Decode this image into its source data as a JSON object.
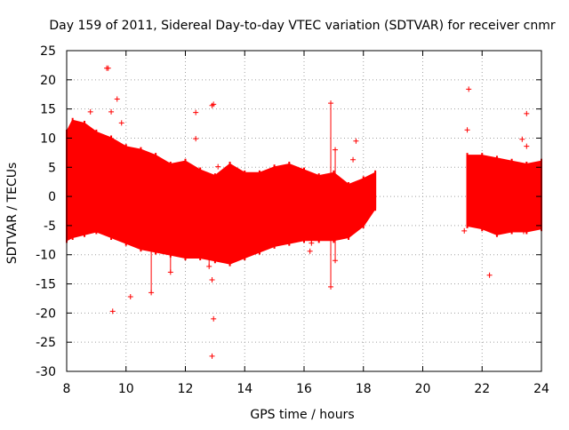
{
  "chart_data": {
    "type": "scatter",
    "title": "Day 159 of 2011, Sidereal Day-to-day VTEC variation (SDTVAR) for receiver cnmr",
    "xlabel": "GPS time / hours",
    "ylabel": "SDTVAR / TECUs",
    "xlim": [
      8,
      24
    ],
    "ylim": [
      -30,
      25
    ],
    "xticks": [
      8,
      10,
      12,
      14,
      16,
      18,
      20,
      22,
      24
    ],
    "yticks": [
      -30,
      -25,
      -20,
      -15,
      -10,
      -5,
      0,
      5,
      10,
      15,
      20,
      25
    ],
    "xtick_labels": [
      "8",
      "10",
      "12",
      "14",
      "16",
      "18",
      "20",
      "22",
      "24"
    ],
    "ytick_labels": [
      "-30",
      "-25",
      "-20",
      "-15",
      "-10",
      "-5",
      "0",
      "5",
      "10",
      "15",
      "20",
      "25"
    ],
    "grid": true,
    "marker": "+",
    "series_color": "#ff0000",
    "series": [
      {
        "name": "SDTVAR",
        "envelope": [
          {
            "x": 8.0,
            "upper": 11.0,
            "lower": -7.5
          },
          {
            "x": 8.2,
            "upper": 13.0,
            "lower": -7.0
          },
          {
            "x": 8.6,
            "upper": 12.5,
            "lower": -6.5
          },
          {
            "x": 9.0,
            "upper": 11.0,
            "lower": -6.0
          },
          {
            "x": 9.5,
            "upper": 10.0,
            "lower": -7.0
          },
          {
            "x": 10.0,
            "upper": 8.5,
            "lower": -8.0
          },
          {
            "x": 10.5,
            "upper": 8.0,
            "lower": -9.0
          },
          {
            "x": 11.0,
            "upper": 7.0,
            "lower": -9.5
          },
          {
            "x": 11.5,
            "upper": 5.5,
            "lower": -10.0
          },
          {
            "x": 12.0,
            "upper": 6.0,
            "lower": -10.5
          },
          {
            "x": 12.5,
            "upper": 4.5,
            "lower": -10.5
          },
          {
            "x": 13.0,
            "upper": 3.5,
            "lower": -11.0
          },
          {
            "x": 13.5,
            "upper": 5.5,
            "lower": -11.5
          },
          {
            "x": 14.0,
            "upper": 4.0,
            "lower": -10.5
          },
          {
            "x": 14.5,
            "upper": 4.0,
            "lower": -9.5
          },
          {
            "x": 15.0,
            "upper": 5.0,
            "lower": -8.5
          },
          {
            "x": 15.5,
            "upper": 5.5,
            "lower": -8.0
          },
          {
            "x": 16.0,
            "upper": 4.5,
            "lower": -7.5
          },
          {
            "x": 16.5,
            "upper": 3.5,
            "lower": -7.5
          },
          {
            "x": 17.0,
            "upper": 4.0,
            "lower": -7.5
          },
          {
            "x": 17.5,
            "upper": 2.0,
            "lower": -7.0
          },
          {
            "x": 18.0,
            "upper": 3.0,
            "lower": -5.0
          },
          {
            "x": 18.4,
            "upper": 4.0,
            "lower": -2.0
          }
        ],
        "envelope_2": [
          {
            "x": 21.5,
            "upper": 7.0,
            "lower": -5.0
          },
          {
            "x": 22.0,
            "upper": 7.0,
            "lower": -5.5
          },
          {
            "x": 22.5,
            "upper": 6.5,
            "lower": -6.5
          },
          {
            "x": 23.0,
            "upper": 6.0,
            "lower": -6.0
          },
          {
            "x": 23.5,
            "upper": 5.5,
            "lower": -6.0
          },
          {
            "x": 24.0,
            "upper": 6.0,
            "lower": -5.5
          }
        ],
        "spikes": [
          {
            "x": 10.85,
            "y1": 1.0,
            "y2": -16.5
          },
          {
            "x": 11.5,
            "y1": -2.0,
            "y2": -13.0
          },
          {
            "x": 12.8,
            "y1": 3.0,
            "y2": -12.0
          },
          {
            "x": 16.25,
            "y1": 3.5,
            "y2": -8.0
          },
          {
            "x": 16.9,
            "y1": 16.0,
            "y2": -15.5
          },
          {
            "x": 17.05,
            "y1": 8.0,
            "y2": -11.0
          }
        ],
        "outliers": [
          {
            "x": 9.35,
            "y": 22.0
          },
          {
            "x": 9.4,
            "y": 22.0
          },
          {
            "x": 9.7,
            "y": 16.7
          },
          {
            "x": 9.85,
            "y": 12.6
          },
          {
            "x": 8.8,
            "y": 14.5
          },
          {
            "x": 9.5,
            "y": 14.5
          },
          {
            "x": 9.55,
            "y": -19.7
          },
          {
            "x": 10.15,
            "y": -17.2
          },
          {
            "x": 12.35,
            "y": 14.4
          },
          {
            "x": 12.35,
            "y": 9.9
          },
          {
            "x": 12.95,
            "y": 15.8
          },
          {
            "x": 12.9,
            "y": 15.6
          },
          {
            "x": 12.95,
            "y": -21.0
          },
          {
            "x": 12.9,
            "y": -27.4
          },
          {
            "x": 12.9,
            "y": -14.3
          },
          {
            "x": 13.1,
            "y": 5.1
          },
          {
            "x": 17.75,
            "y": 9.5
          },
          {
            "x": 17.65,
            "y": 6.3
          },
          {
            "x": 16.2,
            "y": -9.4
          },
          {
            "x": 21.55,
            "y": 18.4
          },
          {
            "x": 21.5,
            "y": 11.4
          },
          {
            "x": 22.25,
            "y": -13.5
          },
          {
            "x": 23.35,
            "y": 9.8
          },
          {
            "x": 23.5,
            "y": 14.2
          },
          {
            "x": 23.5,
            "y": 8.6
          },
          {
            "x": 23.4,
            "y": -6.0
          },
          {
            "x": 23.8,
            "y": -3.5
          },
          {
            "x": 21.4,
            "y": -5.9
          }
        ]
      }
    ]
  }
}
